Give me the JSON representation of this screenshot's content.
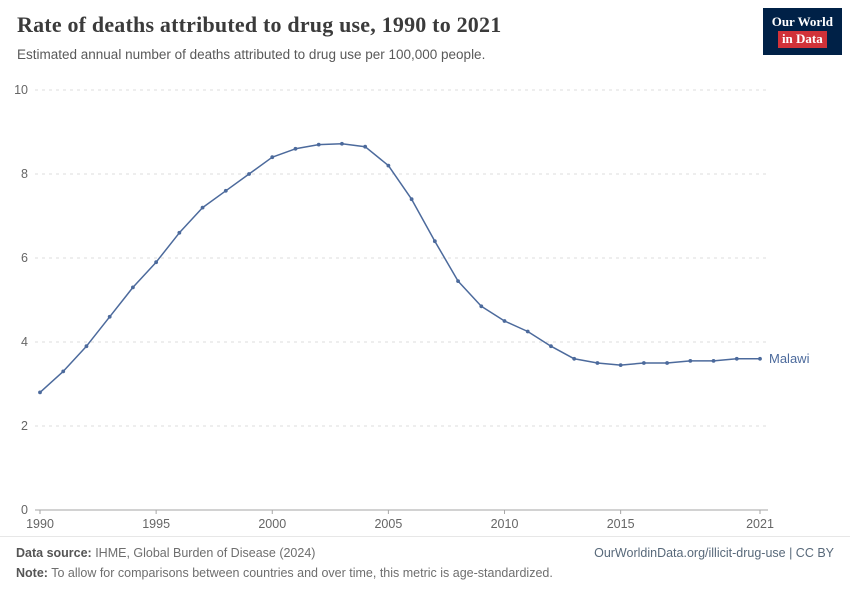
{
  "header": {
    "title": "Rate of deaths attributed to drug use, 1990 to 2021",
    "subtitle": "Estimated annual number of deaths attributed to drug use per 100,000 people.",
    "logo": {
      "line1": "Our World",
      "line2": "in Data",
      "bg_color": "#002147",
      "accent_color": "#d13239"
    }
  },
  "chart_data": {
    "type": "line",
    "title": "Rate of deaths attributed to drug use, 1990 to 2021",
    "xlabel": "",
    "ylabel": "",
    "ylim": [
      0,
      10
    ],
    "yticks": [
      0,
      2,
      4,
      6,
      8,
      10
    ],
    "xticks": [
      1990,
      1995,
      2000,
      2005,
      2010,
      2015,
      2021
    ],
    "grid": "horizontal-dashed",
    "legend_position": "end-of-line-label",
    "x": [
      1990,
      1991,
      1992,
      1993,
      1994,
      1995,
      1996,
      1997,
      1998,
      1999,
      2000,
      2001,
      2002,
      2003,
      2004,
      2005,
      2006,
      2007,
      2008,
      2009,
      2010,
      2011,
      2012,
      2013,
      2014,
      2015,
      2016,
      2017,
      2018,
      2019,
      2020,
      2021
    ],
    "series": [
      {
        "name": "Malawi",
        "color": "#4c6a9c",
        "values": [
          2.8,
          3.3,
          3.9,
          4.6,
          5.3,
          5.9,
          6.6,
          7.2,
          7.6,
          8.0,
          8.4,
          8.6,
          8.7,
          8.72,
          8.65,
          8.2,
          7.4,
          6.4,
          5.45,
          4.85,
          4.5,
          4.25,
          3.9,
          3.6,
          3.5,
          3.45,
          3.5,
          3.5,
          3.55,
          3.55,
          3.6,
          3.6
        ]
      }
    ]
  },
  "footer": {
    "source_label": "Data source:",
    "source_text": " IHME, Global Burden of Disease (2024)",
    "note_label": "Note:",
    "note_text": " To allow for comparisons between countries and over time, this metric is age-standardized.",
    "link": "OurWorldinData.org/illicit-drug-use | CC BY"
  }
}
